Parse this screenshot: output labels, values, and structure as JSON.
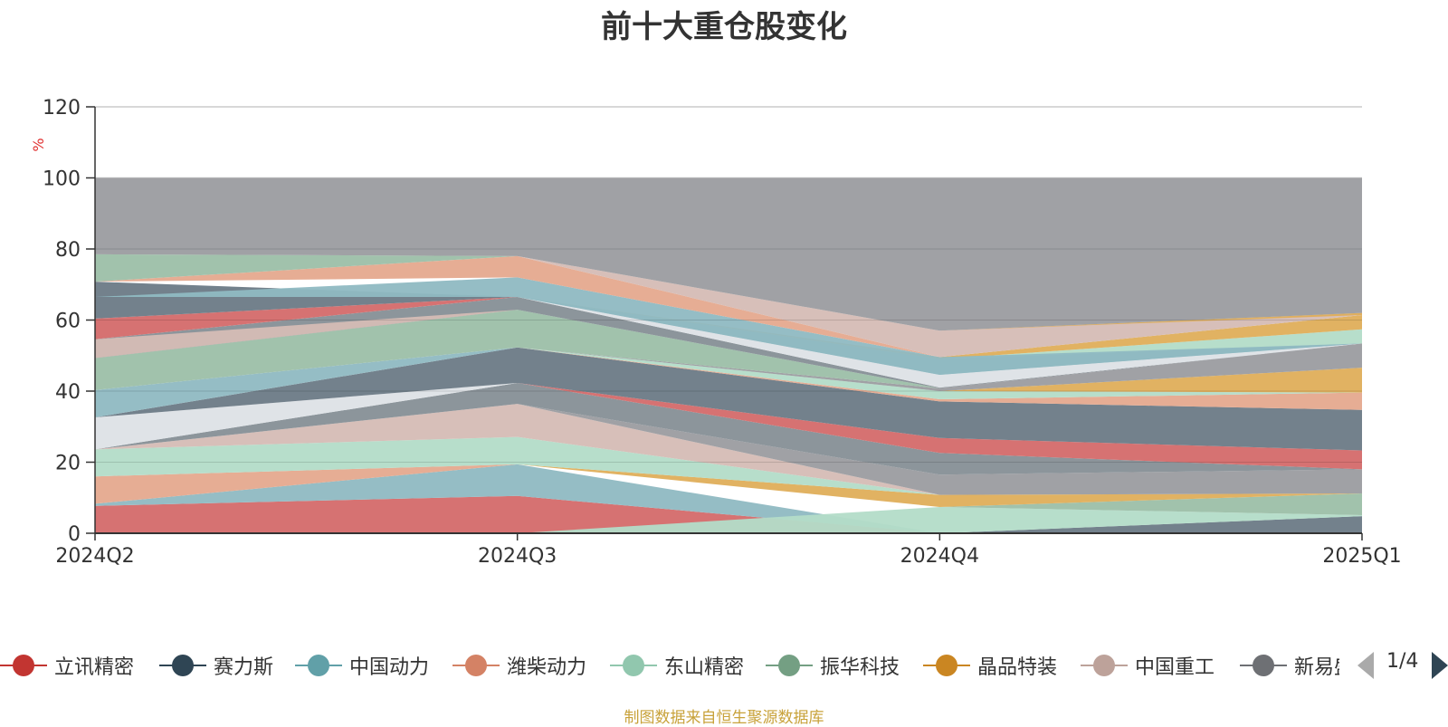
{
  "chart_data": {
    "type": "area",
    "title": "前十大重仓股变化",
    "ylabel": "%",
    "ylim": [
      0,
      120
    ],
    "yticks": [
      0,
      20,
      40,
      60,
      80,
      100,
      120
    ],
    "categories": [
      "2024Q2",
      "2024Q3",
      "2024Q4",
      "2025Q1"
    ],
    "stacked": true,
    "grid": true,
    "legend_position": "bottom",
    "legend_page": "1/4",
    "source_note": "制图数据来自恒生聚源数据库",
    "layers": [
      {
        "name": "",
        "color": "#d46a6a",
        "lower": [
          0,
          0,
          0,
          0
        ],
        "upper": [
          7.7,
          10.5,
          0,
          0
        ]
      },
      {
        "name": "",
        "color": "#8fb9c2",
        "lower": [
          7.7,
          10.5,
          0,
          0
        ],
        "upper": [
          8.3,
          19.4,
          0,
          0
        ]
      },
      {
        "name": "",
        "color": "#6b7a86",
        "lower": [
          0,
          0,
          0,
          0
        ],
        "upper": [
          0,
          0,
          0,
          4.8
        ]
      },
      {
        "name": "",
        "color": "#b3dcc8",
        "lower": [
          0,
          0,
          0,
          4.8
        ],
        "upper": [
          0,
          0,
          7.4,
          5.1
        ]
      },
      {
        "name": "",
        "color": "#9cbfa8",
        "lower": [
          0,
          0,
          7.4,
          5.1
        ],
        "upper": [
          0,
          0,
          7.4,
          11.2
        ]
      },
      {
        "name": "",
        "color": "#e5a98e",
        "lower": [
          8.3,
          19.4,
          7.4,
          11.2
        ],
        "upper": [
          16.0,
          19.4,
          7.4,
          11.2
        ]
      },
      {
        "name": "",
        "color": "#dfae5a",
        "lower": [
          16.0,
          19.4,
          7.4,
          11.2
        ],
        "upper": [
          16.0,
          19.4,
          10.8,
          11.2
        ]
      },
      {
        "name": "",
        "color": "#b3dcc8",
        "lower": [
          16.0,
          19.4,
          10.8,
          11.2
        ],
        "upper": [
          23.6,
          27.1,
          10.8,
          11.2
        ]
      },
      {
        "name": "",
        "color": "#d5bcb5",
        "lower": [
          23.6,
          27.1,
          10.8,
          11.2
        ],
        "upper": [
          23.6,
          36.4,
          10.8,
          11.2
        ]
      },
      {
        "name": "",
        "color": "#9b9ca0",
        "lower": [
          23.6,
          36.4,
          10.8,
          11.2
        ],
        "upper": [
          23.6,
          36.4,
          16.5,
          18.0
        ]
      },
      {
        "name": "",
        "color": "#868f96",
        "lower": [
          23.6,
          36.4,
          16.5,
          18.0
        ],
        "upper": [
          23.6,
          42.3,
          22.6,
          18.0
        ]
      },
      {
        "name": "",
        "color": "#d46a6a",
        "lower": [
          23.6,
          42.3,
          22.6,
          18.0
        ],
        "upper": [
          23.6,
          42.3,
          26.8,
          23.3
        ]
      },
      {
        "name": "",
        "color": "#dde1e6",
        "lower": [
          23.6,
          42.3,
          26.8,
          23.3
        ],
        "upper": [
          32.6,
          42.3,
          26.8,
          23.3
        ]
      },
      {
        "name": "",
        "color": "#6b7a86",
        "lower": [
          32.6,
          42.3,
          26.8,
          23.3
        ],
        "upper": [
          32.6,
          52.3,
          37.1,
          34.7
        ]
      },
      {
        "name": "",
        "color": "#e5a98e",
        "lower": [
          32.6,
          52.3,
          37.1,
          34.7
        ],
        "upper": [
          32.6,
          52.3,
          37.7,
          39.6
        ]
      },
      {
        "name": "",
        "color": "#8fb9c2",
        "lower": [
          32.6,
          52.3,
          37.7,
          39.6
        ],
        "upper": [
          40.3,
          52.3,
          37.7,
          39.6
        ]
      },
      {
        "name": "",
        "color": "#b3dcc8",
        "lower": [
          40.3,
          52.3,
          37.7,
          39.6
        ],
        "upper": [
          40.3,
          52.3,
          40.0,
          39.6
        ]
      },
      {
        "name": "",
        "color": "#dfae5a",
        "lower": [
          40.3,
          52.3,
          40.0,
          39.6
        ],
        "upper": [
          40.3,
          52.3,
          40.0,
          46.6
        ]
      },
      {
        "name": "",
        "color": "#9b9ca0",
        "lower": [
          40.3,
          52.3,
          40.0,
          46.6
        ],
        "upper": [
          40.3,
          52.3,
          40.8,
          53.4
        ]
      },
      {
        "name": "",
        "color": "#9cbfa8",
        "lower": [
          40.3,
          52.3,
          40.8,
          53.4
        ],
        "upper": [
          49.3,
          62.9,
          40.8,
          53.4
        ]
      },
      {
        "name": "",
        "color": "#c0b6ad",
        "lower": [
          49.3,
          62.9,
          40.8,
          53.4
        ],
        "upper": [
          49.3,
          62.9,
          40.8,
          53.4
        ]
      },
      {
        "name": "",
        "color": "#868f96",
        "lower": [
          49.3,
          62.9,
          40.8,
          53.4
        ],
        "upper": [
          54.6,
          66.5,
          41.0,
          53.4
        ]
      },
      {
        "name": "",
        "color": "#dde1e6",
        "lower": [
          54.6,
          66.5,
          41.0,
          53.4
        ],
        "upper": [
          54.6,
          66.5,
          44.6,
          53.4
        ]
      },
      {
        "name": "",
        "color": "#8fb9c2",
        "lower": [
          54.6,
          66.5,
          44.6,
          53.4
        ],
        "upper": [
          54.6,
          66.5,
          49.0,
          53.4
        ]
      },
      {
        "name": "",
        "color": "#b3dcc8",
        "lower": [
          54.6,
          66.5,
          49.0,
          53.4
        ],
        "upper": [
          54.6,
          66.5,
          49.0,
          57.4
        ]
      },
      {
        "name": "",
        "color": "#dfae5a",
        "lower": [
          54.6,
          66.5,
          49.0,
          57.4
        ],
        "upper": [
          54.6,
          66.5,
          49.6,
          61.4
        ]
      },
      {
        "name": "",
        "color": "#d5bcb5",
        "lower": [
          49.3,
          62.9,
          49.6,
          61.4
        ],
        "upper": [
          54.6,
          62.9,
          49.6,
          61.4
        ]
      },
      {
        "name": "",
        "color": "#d46a6a",
        "lower": [
          54.6,
          66.5,
          49.6,
          61.4
        ],
        "upper": [
          60.4,
          66.5,
          49.6,
          61.4
        ]
      },
      {
        "name": "",
        "color": "#6b7a86",
        "lower": [
          60.4,
          66.5,
          49.6,
          61.4
        ],
        "upper": [
          70.8,
          66.5,
          49.6,
          61.4
        ]
      },
      {
        "name": "",
        "color": "#8fb9c2",
        "lower": [
          66.5,
          66.5,
          44.6,
          53.4
        ],
        "upper": [
          66.5,
          72.0,
          49.6,
          53.4
        ]
      },
      {
        "name": "",
        "color": "#e5a98e",
        "lower": [
          70.8,
          72.0,
          49.6,
          61.4
        ],
        "upper": [
          70.8,
          78.0,
          49.6,
          61.4
        ]
      },
      {
        "name": "",
        "color": "#9cbfa8",
        "lower": [
          70.8,
          78.0,
          49.6,
          61.4
        ],
        "upper": [
          78.5,
          78.0,
          49.6,
          61.4
        ]
      },
      {
        "name": "",
        "color": "#d5bcb5",
        "lower": [
          78.5,
          78.0,
          49.6,
          61.4
        ],
        "upper": [
          78.5,
          78.0,
          57.0,
          62.0
        ]
      },
      {
        "name": "",
        "color": "#dfae5a",
        "lower": [
          78.5,
          78.0,
          57.0,
          61.4
        ],
        "upper": [
          78.5,
          78.0,
          57.0,
          62.0
        ]
      },
      {
        "name": "",
        "color": "#9b9ca0",
        "lower": [
          78.5,
          78.0,
          57.0,
          62.0
        ],
        "upper": [
          100,
          100,
          100,
          100
        ]
      }
    ],
    "legend": [
      {
        "name": "立讯精密",
        "color": "#c23531"
      },
      {
        "name": "赛力斯",
        "color": "#2f4554"
      },
      {
        "name": "中国动力",
        "color": "#61a0a8"
      },
      {
        "name": "潍柴动力",
        "color": "#d48265"
      },
      {
        "name": "东山精密",
        "color": "#91c7ae"
      },
      {
        "name": "振华科技",
        "color": "#749f83"
      },
      {
        "name": "晶品特装",
        "color": "#ca8622"
      },
      {
        "name": "中国重工",
        "color": "#bda29a"
      },
      {
        "name": "新易盛",
        "color": "#6e7074"
      }
    ]
  }
}
